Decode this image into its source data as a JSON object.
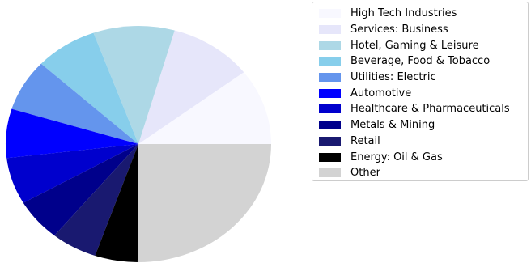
{
  "chart_data": {
    "type": "pie",
    "title": "",
    "labels": [
      "High Tech Industries",
      "Services: Business",
      "Hotel, Gaming & Leisure",
      "Beverage, Food & Tobacco",
      "Utilities: Electric",
      "Automotive",
      "Healthcare & Pharmaceuticals",
      "Metals & Mining",
      "Retail",
      "Energy: Oil & Gas",
      "Other"
    ],
    "values": [
      10.4,
      10.2,
      9.9,
      7.6,
      7.1,
      6.7,
      6.4,
      5.8,
      5.6,
      5.2,
      25.1
    ],
    "colors": [
      "#f8f8ff",
      "#e6e6fa",
      "#add8e6",
      "#87ceeb",
      "#6495ed",
      "#0000ff",
      "#0000cd",
      "#00008b",
      "#191970",
      "#000000",
      "#d3d3d3"
    ],
    "start_angle_deg": 0,
    "direction": "counterclockwise",
    "legend_position": "right"
  }
}
